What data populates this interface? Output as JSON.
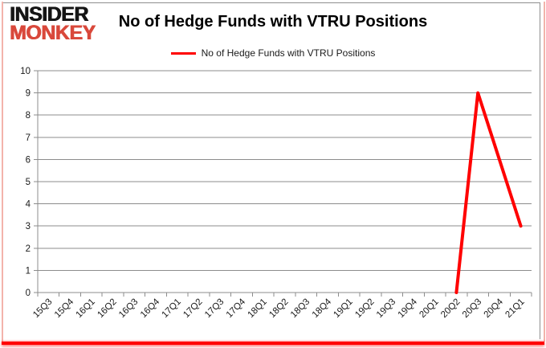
{
  "logo": {
    "line1": "INSIDER",
    "line2": "MONKEY"
  },
  "colors": {
    "series_red": "#FF0000",
    "logo_black": "#151515",
    "logo_red": "#D9483B",
    "gridline": "#8C8C8C",
    "axis": "#8C8C8C",
    "tick_text": "#1A1A1A",
    "border_bottom_red": "#FF0000",
    "border_side_pink": "#F3B3AB"
  },
  "chart_data": {
    "type": "line",
    "title": "No of Hedge Funds with VTRU Positions",
    "xlabel": "",
    "ylabel": "",
    "ylim": [
      0,
      10
    ],
    "ytick_step": 1,
    "grid": true,
    "legend_position": "top-center",
    "categories": [
      "15Q3",
      "15Q4",
      "16Q1",
      "16Q2",
      "16Q3",
      "16Q4",
      "17Q1",
      "17Q2",
      "17Q3",
      "17Q4",
      "18Q1",
      "18Q2",
      "18Q3",
      "18Q4",
      "19Q1",
      "19Q2",
      "19Q3",
      "19Q4",
      "20Q1",
      "20Q2",
      "20Q3",
      "20Q4",
      "21Q1"
    ],
    "series": [
      {
        "name": "No of Hedge Funds with VTRU Positions",
        "color": "#FF0000",
        "values": [
          null,
          null,
          null,
          null,
          null,
          null,
          null,
          null,
          null,
          null,
          null,
          null,
          null,
          null,
          null,
          null,
          null,
          null,
          null,
          0,
          9,
          6,
          3
        ]
      }
    ]
  }
}
